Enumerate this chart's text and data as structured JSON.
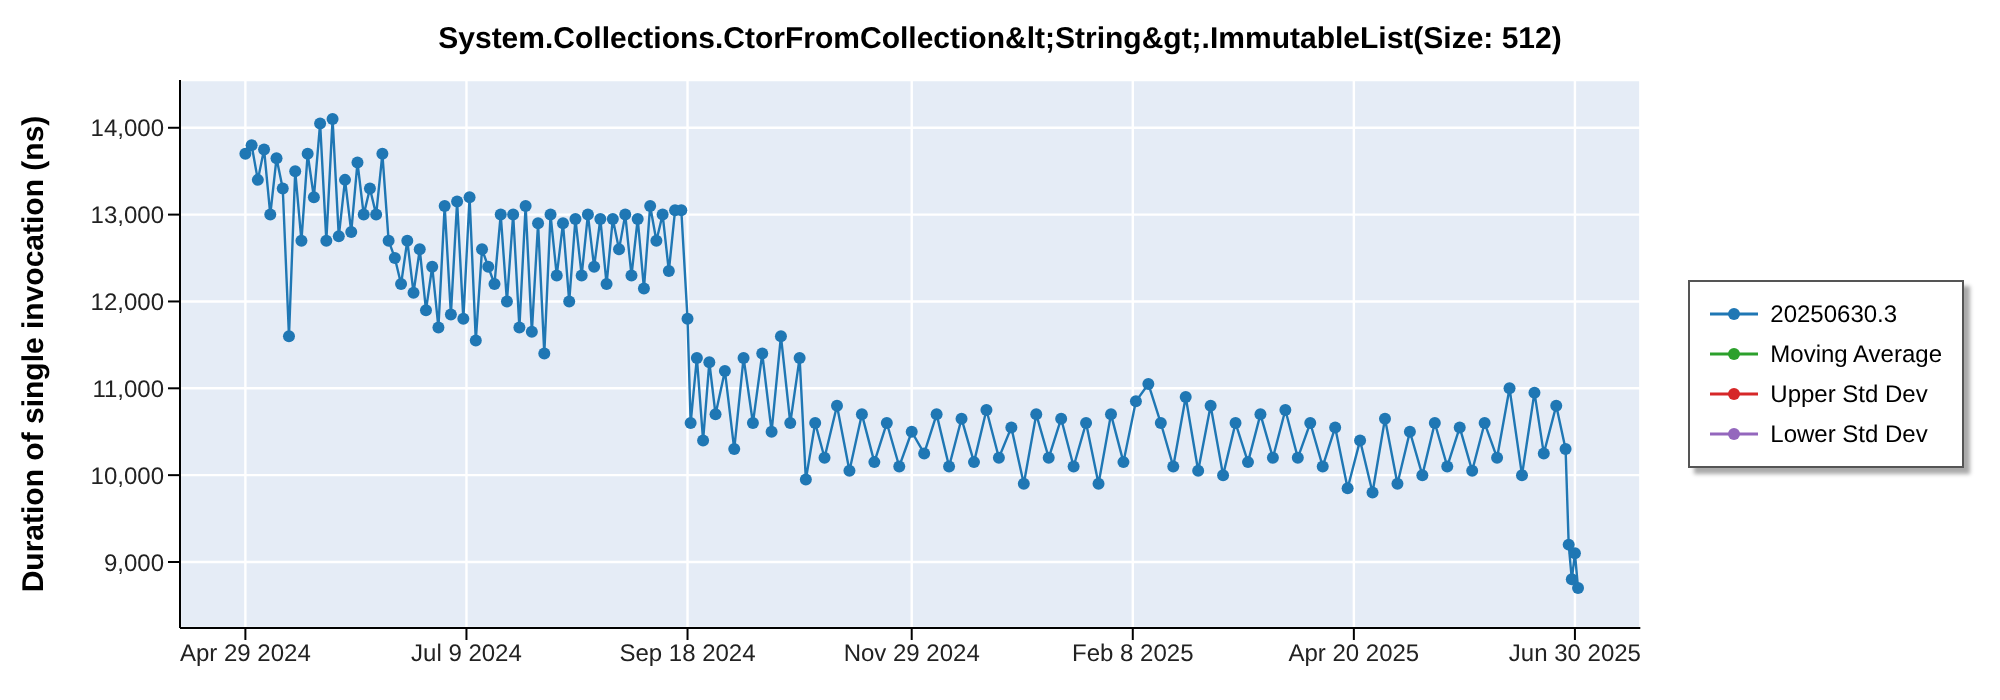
{
  "chart_data": {
    "type": "line",
    "title": "System.Collections.CtorFromCollection&lt;String&gt;.ImmutableList(Size: 512)",
    "ylabel": "Duration of single invocation (ns)",
    "x": [
      "2024-04-29",
      "2024-05-01",
      "2024-05-03",
      "2024-05-05",
      "2024-05-07",
      "2024-05-09",
      "2024-05-11",
      "2024-05-13",
      "2024-05-15",
      "2024-05-17",
      "2024-05-19",
      "2024-05-21",
      "2024-05-23",
      "2024-05-25",
      "2024-05-27",
      "2024-05-29",
      "2024-05-31",
      "2024-06-02",
      "2024-06-04",
      "2024-06-06",
      "2024-06-08",
      "2024-06-10",
      "2024-06-12",
      "2024-06-14",
      "2024-06-16",
      "2024-06-18",
      "2024-06-20",
      "2024-06-22",
      "2024-06-24",
      "2024-06-26",
      "2024-06-28",
      "2024-06-30",
      "2024-07-02",
      "2024-07-04",
      "2024-07-06",
      "2024-07-08",
      "2024-07-10",
      "2024-07-12",
      "2024-07-14",
      "2024-07-16",
      "2024-07-18",
      "2024-07-20",
      "2024-07-22",
      "2024-07-24",
      "2024-07-26",
      "2024-07-28",
      "2024-07-30",
      "2024-08-01",
      "2024-08-03",
      "2024-08-05",
      "2024-08-07",
      "2024-08-09",
      "2024-08-11",
      "2024-08-13",
      "2024-08-15",
      "2024-08-17",
      "2024-08-19",
      "2024-08-21",
      "2024-08-23",
      "2024-08-25",
      "2024-08-27",
      "2024-08-29",
      "2024-08-31",
      "2024-09-02",
      "2024-09-04",
      "2024-09-06",
      "2024-09-08",
      "2024-09-10",
      "2024-09-12",
      "2024-09-14",
      "2024-09-16",
      "2024-09-18",
      "2024-09-19",
      "2024-09-21",
      "2024-09-23",
      "2024-09-25",
      "2024-09-27",
      "2024-09-30",
      "2024-10-03",
      "2024-10-06",
      "2024-10-09",
      "2024-10-12",
      "2024-10-15",
      "2024-10-18",
      "2024-10-21",
      "2024-10-24",
      "2024-10-26",
      "2024-10-29",
      "2024-11-01",
      "2024-11-05",
      "2024-11-09",
      "2024-11-13",
      "2024-11-17",
      "2024-11-21",
      "2024-11-25",
      "2024-11-29",
      "2024-12-03",
      "2024-12-07",
      "2024-12-11",
      "2024-12-15",
      "2024-12-19",
      "2024-12-23",
      "2024-12-27",
      "2024-12-31",
      "2025-01-04",
      "2025-01-08",
      "2025-01-12",
      "2025-01-16",
      "2025-01-20",
      "2025-01-24",
      "2025-01-28",
      "2025-02-01",
      "2025-02-05",
      "2025-02-09",
      "2025-02-13",
      "2025-02-17",
      "2025-02-21",
      "2025-02-25",
      "2025-03-01",
      "2025-03-05",
      "2025-03-09",
      "2025-03-13",
      "2025-03-17",
      "2025-03-21",
      "2025-03-25",
      "2025-03-29",
      "2025-04-02",
      "2025-04-06",
      "2025-04-10",
      "2025-04-14",
      "2025-04-18",
      "2025-04-22",
      "2025-04-26",
      "2025-04-30",
      "2025-05-04",
      "2025-05-08",
      "2025-05-12",
      "2025-05-16",
      "2025-05-20",
      "2025-05-24",
      "2025-05-28",
      "2025-06-01",
      "2025-06-05",
      "2025-06-09",
      "2025-06-13",
      "2025-06-17",
      "2025-06-20",
      "2025-06-24",
      "2025-06-27",
      "2025-06-28",
      "2025-06-29",
      "2025-06-30",
      "2025-07-01"
    ],
    "series": [
      {
        "name": "20250630.3",
        "color": "#1f77b4",
        "values": [
          13700,
          13800,
          13400,
          13750,
          13000,
          13650,
          13300,
          11600,
          13500,
          12700,
          13700,
          13200,
          14050,
          12700,
          14100,
          12750,
          13400,
          12800,
          13600,
          13000,
          13300,
          13000,
          13700,
          12700,
          12500,
          12200,
          12700,
          12100,
          12600,
          11900,
          12400,
          11700,
          13100,
          11850,
          13150,
          11800,
          13200,
          11550,
          12600,
          12400,
          12200,
          13000,
          12000,
          13000,
          11700,
          13100,
          11650,
          12900,
          11400,
          13000,
          12300,
          12900,
          12000,
          12950,
          12300,
          13000,
          12400,
          12950,
          12200,
          12950,
          12600,
          13000,
          12300,
          12950,
          12150,
          13100,
          12700,
          13000,
          12350,
          13050,
          13050,
          11800,
          10600,
          11350,
          10400,
          11300,
          10700,
          11200,
          10300,
          11350,
          10600,
          11400,
          10500,
          11600,
          10600,
          11350,
          9950,
          10600,
          10200,
          10800,
          10050,
          10700,
          10150,
          10600,
          10100,
          10500,
          10250,
          10700,
          10100,
          10650,
          10150,
          10750,
          10200,
          10550,
          9900,
          10700,
          10200,
          10650,
          10100,
          10600,
          9900,
          10700,
          10150,
          10850,
          11050,
          10600,
          10100,
          10900,
          10050,
          10800,
          10000,
          10600,
          10150,
          10700,
          10200,
          10750,
          10200,
          10600,
          10100,
          10550,
          9850,
          10400,
          9800,
          10650,
          9900,
          10500,
          10000,
          10600,
          10100,
          10550,
          10050,
          10600,
          10200,
          11000,
          10000,
          10950,
          10250,
          10800,
          10300,
          9200,
          8800,
          9100,
          8700
        ]
      },
      {
        "name": "Moving Average",
        "color": "#2ca02c",
        "values": [
          null,
          null,
          null,
          null,
          null,
          null,
          null,
          null,
          null,
          null,
          null,
          null,
          null,
          null,
          null,
          null,
          null,
          null,
          null,
          null,
          null,
          null,
          null,
          null,
          null,
          null,
          null,
          null,
          null,
          null,
          null,
          null,
          null,
          null,
          null,
          null,
          null,
          null,
          null,
          null,
          null,
          null,
          null,
          null,
          null,
          null,
          null,
          null,
          null,
          null,
          null,
          null,
          null,
          null,
          null,
          null,
          null,
          null,
          null,
          null,
          null,
          null,
          null,
          null,
          null,
          null,
          null,
          null,
          null,
          null,
          null,
          null,
          null,
          null,
          null,
          null,
          null,
          null,
          null,
          null,
          null,
          null,
          null,
          null,
          null,
          null,
          null,
          null,
          null,
          null,
          null,
          null,
          null,
          null,
          null,
          null,
          null,
          null,
          null,
          null,
          null,
          null,
          null,
          null,
          null,
          null,
          null,
          null,
          null,
          null,
          null,
          null,
          null,
          null,
          null,
          null,
          null,
          null,
          null,
          null,
          null,
          null,
          null,
          null,
          null,
          null,
          null,
          null,
          null,
          null,
          null,
          null,
          null,
          null,
          null,
          null,
          null,
          null,
          null,
          null,
          null,
          null,
          null,
          null,
          null,
          null,
          null,
          null,
          null,
          null,
          null,
          null,
          null
        ]
      },
      {
        "name": "Upper Std Dev",
        "color": "#d62728",
        "values": [
          null,
          null,
          null,
          null,
          null,
          null,
          null,
          null,
          null,
          null,
          null,
          null,
          null,
          null,
          null,
          null,
          null,
          null,
          null,
          null,
          null,
          null,
          null,
          null,
          null,
          null,
          null,
          null,
          null,
          null,
          null,
          null,
          null,
          null,
          null,
          null,
          null,
          null,
          null,
          null,
          null,
          null,
          null,
          null,
          null,
          null,
          null,
          null,
          null,
          null,
          null,
          null,
          null,
          null,
          null,
          null,
          null,
          null,
          null,
          null,
          null,
          null,
          null,
          null,
          null,
          null,
          null,
          null,
          null,
          null,
          null,
          null,
          null,
          null,
          null,
          null,
          null,
          null,
          null,
          null,
          null,
          null,
          null,
          null,
          null,
          null,
          null,
          null,
          null,
          null,
          null,
          null,
          null,
          null,
          null,
          null,
          null,
          null,
          null,
          null,
          null,
          null,
          null,
          null,
          null,
          null,
          null,
          null,
          null,
          null,
          null,
          null,
          null,
          null,
          null,
          null,
          null,
          null,
          null,
          null,
          null,
          null,
          null,
          null,
          null,
          null,
          null,
          null,
          null,
          null,
          null,
          null,
          null,
          null,
          null,
          null,
          null,
          null,
          null,
          null,
          null,
          null,
          null,
          null,
          null,
          null,
          null,
          null,
          null,
          null,
          null,
          null,
          null
        ]
      },
      {
        "name": "Lower Std Dev",
        "color": "#9467bd",
        "values": [
          null,
          null,
          null,
          null,
          null,
          null,
          null,
          null,
          null,
          null,
          null,
          null,
          null,
          null,
          null,
          null,
          null,
          null,
          null,
          null,
          null,
          null,
          null,
          null,
          null,
          null,
          null,
          null,
          null,
          null,
          null,
          null,
          null,
          null,
          null,
          null,
          null,
          null,
          null,
          null,
          null,
          null,
          null,
          null,
          null,
          null,
          null,
          null,
          null,
          null,
          null,
          null,
          null,
          null,
          null,
          null,
          null,
          null,
          null,
          null,
          null,
          null,
          null,
          null,
          null,
          null,
          null,
          null,
          null,
          null,
          null,
          null,
          null,
          null,
          null,
          null,
          null,
          null,
          null,
          null,
          null,
          null,
          null,
          null,
          null,
          null,
          null,
          null,
          null,
          null,
          null,
          null,
          null,
          null,
          null,
          null,
          null,
          null,
          null,
          null,
          null,
          null,
          null,
          null,
          null,
          null,
          null,
          null,
          null,
          null,
          null,
          null,
          null,
          null,
          null,
          null,
          null,
          null,
          null,
          null,
          null,
          null,
          null,
          null,
          null,
          null,
          null,
          null,
          null,
          null,
          null,
          null,
          null,
          null,
          null,
          null,
          null,
          null,
          null,
          null,
          null,
          null,
          null,
          null,
          null,
          null,
          null,
          null,
          null,
          null,
          null,
          null,
          null
        ]
      }
    ],
    "xlim": [
      "2024-04-08",
      "2025-07-21"
    ],
    "xticks": [
      {
        "value": "2024-04-29",
        "label": "Apr 29 2024"
      },
      {
        "value": "2024-07-09",
        "label": "Jul 9 2024"
      },
      {
        "value": "2024-09-18",
        "label": "Sep 18 2024"
      },
      {
        "value": "2024-11-29",
        "label": "Nov 29 2024"
      },
      {
        "value": "2025-02-08",
        "label": "Feb 8 2025"
      },
      {
        "value": "2025-04-20",
        "label": "Apr 20 2025"
      },
      {
        "value": "2025-06-30",
        "label": "Jun 30 2025"
      }
    ],
    "ylim": [
      8240,
      14550
    ],
    "yticks": [
      {
        "value": 9000,
        "label": "9,000"
      },
      {
        "value": 10000,
        "label": "10,000"
      },
      {
        "value": 11000,
        "label": "11,000"
      },
      {
        "value": 12000,
        "label": "12,000"
      },
      {
        "value": 13000,
        "label": "13,000"
      },
      {
        "value": 14000,
        "label": "14,000"
      }
    ],
    "grid": true,
    "legend": "right",
    "marker": "circle",
    "line_style": "solid"
  }
}
